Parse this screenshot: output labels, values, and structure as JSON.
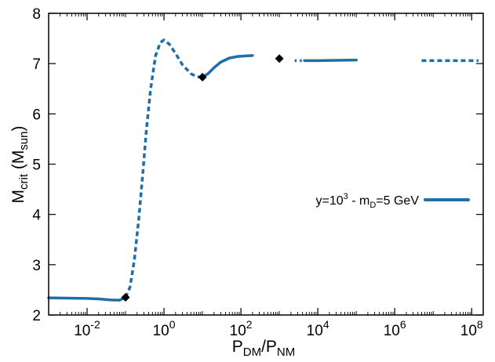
{
  "chart_data": {
    "type": "line",
    "x_scale": "log",
    "xlim": [
      0.001,
      200000000
    ],
    "ylim": [
      2,
      8
    ],
    "grid": false,
    "legend_position": "right",
    "xlabel": {
      "main": "P",
      "sub1": "DM",
      "sep": "/P",
      "sub2": "NM"
    },
    "ylabel": {
      "main": "M",
      "sub1": "crit",
      "mid": " (M",
      "sub2": "sun",
      "end": ")"
    },
    "x_ticks": [
      {
        "value": 0.01,
        "base": "10",
        "exp": "-2"
      },
      {
        "value": 1,
        "base": "10",
        "exp": "0"
      },
      {
        "value": 100,
        "base": "10",
        "exp": "2"
      },
      {
        "value": 10000,
        "base": "10",
        "exp": "4"
      },
      {
        "value": 1000000,
        "base": "10",
        "exp": "6"
      },
      {
        "value": 100000000,
        "base": "10",
        "exp": "8"
      }
    ],
    "y_ticks": [
      {
        "value": 2,
        "label": "2"
      },
      {
        "value": 3,
        "label": "3"
      },
      {
        "value": 4,
        "label": "4"
      },
      {
        "value": 5,
        "label": "5"
      },
      {
        "value": 6,
        "label": "6"
      },
      {
        "value": 7,
        "label": "7"
      },
      {
        "value": 8,
        "label": "8"
      }
    ],
    "color": "#1f6ea8",
    "legend": {
      "y_text": "y=10",
      "y_exp": "3",
      "mid_text": " - m",
      "m_sub": "D",
      "end_text": "=5 GeV"
    },
    "series": [
      {
        "style": "solid",
        "points": [
          [
            0.001,
            2.34
          ],
          [
            0.003,
            2.335
          ],
          [
            0.01,
            2.33
          ],
          [
            0.02,
            2.32
          ],
          [
            0.04,
            2.3
          ],
          [
            0.07,
            2.295
          ],
          [
            0.1,
            2.35
          ]
        ]
      },
      {
        "style": "dashed",
        "points": [
          [
            0.1,
            2.35
          ],
          [
            0.13,
            2.55
          ],
          [
            0.17,
            3.1
          ],
          [
            0.22,
            3.9
          ],
          [
            0.28,
            4.8
          ],
          [
            0.35,
            5.7
          ],
          [
            0.45,
            6.5
          ],
          [
            0.6,
            7.15
          ],
          [
            0.8,
            7.42
          ],
          [
            1.0,
            7.47
          ],
          [
            1.4,
            7.38
          ],
          [
            2.0,
            7.2
          ],
          [
            3.0,
            6.98
          ],
          [
            5.0,
            6.8
          ],
          [
            7.0,
            6.74
          ],
          [
            10.0,
            6.73
          ]
        ]
      },
      {
        "style": "solid",
        "points": [
          [
            10.0,
            6.73
          ],
          [
            14.0,
            6.8
          ],
          [
            20.0,
            6.92
          ],
          [
            30.0,
            7.03
          ],
          [
            50.0,
            7.11
          ],
          [
            80.0,
            7.14
          ],
          [
            120.0,
            7.15
          ],
          [
            200.0,
            7.16
          ]
        ]
      },
      {
        "style": "dotted",
        "points": [
          [
            2500,
            7.06
          ],
          [
            4500,
            7.06
          ]
        ]
      },
      {
        "style": "solid",
        "points": [
          [
            4500,
            7.06
          ],
          [
            10000,
            7.06
          ],
          [
            30000,
            7.065
          ],
          [
            100000,
            7.07
          ]
        ]
      },
      {
        "style": "dashed",
        "points": [
          [
            5000000,
            7.06
          ],
          [
            30000000,
            7.06
          ],
          [
            150000000,
            7.06
          ]
        ]
      }
    ],
    "markers": [
      {
        "x": 0.1,
        "y": 2.35
      },
      {
        "x": 10,
        "y": 6.73
      },
      {
        "x": 1000,
        "y": 7.1
      }
    ]
  }
}
